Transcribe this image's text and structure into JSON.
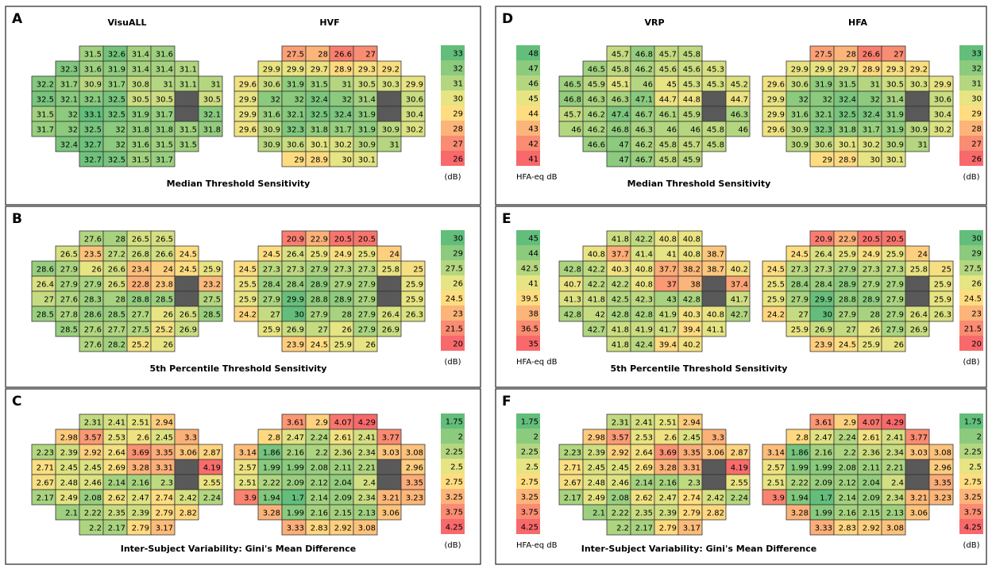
{
  "palette": [
    "#63be7b",
    "#8cca7e",
    "#b5d680",
    "#e6e483",
    "#fedd81",
    "#fbb479",
    "#f98c72",
    "#f8696b"
  ],
  "blind_spot_color": "#595959",
  "panels": [
    {
      "label": "A",
      "title": "Median Threshold Sensitivity",
      "grids": [
        {
          "name": "VisuALL",
          "rows": [
            [
              31.5,
              32.6,
              31.4,
              31.6
            ],
            [
              32.3,
              31.6,
              31.9,
              31.4,
              31.4,
              31.1
            ],
            [
              32.2,
              31.7,
              30.9,
              31.7,
              30.8,
              31,
              31.1,
              31
            ],
            [
              32.5,
              32.1,
              32.1,
              32.5,
              30.5,
              30.5,
              null,
              30.5
            ],
            [
              31.5,
              32,
              33.1,
              32.5,
              31.9,
              31.7,
              null,
              32.1
            ],
            [
              31.7,
              32,
              32.5,
              32,
              31.8,
              31.8,
              31.5,
              31.8
            ],
            [
              32.4,
              32.7,
              32,
              31.6,
              31.5,
              31.5
            ],
            [
              32.7,
              32.5,
              31.5,
              31.7
            ]
          ]
        },
        {
          "name": "HVF",
          "rows": [
            [
              27.5,
              28,
              26.6,
              27
            ],
            [
              29.9,
              29.9,
              29.7,
              28.9,
              29.3,
              29.2
            ],
            [
              29.6,
              30.6,
              31.9,
              31.5,
              31,
              30.5,
              30.3,
              29.9
            ],
            [
              29.9,
              32,
              32,
              32.4,
              32,
              31.4,
              null,
              30.6
            ],
            [
              29.9,
              31.6,
              32.1,
              32.5,
              32.4,
              31.9,
              null,
              30.4
            ],
            [
              29.6,
              30.9,
              32.3,
              31.8,
              31.7,
              31.9,
              30.9,
              30.2
            ],
            [
              30.9,
              30.6,
              30.1,
              30.2,
              30.9,
              31
            ],
            [
              29,
              28.9,
              30,
              30.1
            ]
          ]
        }
      ],
      "legends": [
        {
          "values": [
            33,
            32,
            31,
            30,
            29,
            28,
            27,
            26
          ],
          "unit": "(dB)"
        }
      ]
    },
    {
      "label": "B",
      "title": "5th Percentile Threshold Sensitivity",
      "grids": [
        {
          "rows": [
            [
              27.6,
              28,
              26.5,
              26.5
            ],
            [
              26.5,
              23.5,
              27.2,
              26.8,
              26.6,
              24.5
            ],
            [
              28.6,
              27.9,
              26,
              26.6,
              23.4,
              24,
              24.5,
              25.9
            ],
            [
              26.4,
              27.9,
              27.9,
              26.5,
              22.8,
              23.8,
              null,
              23.2
            ],
            [
              27,
              27.6,
              28.3,
              28,
              28.8,
              28.5,
              null,
              27.5
            ],
            [
              28.5,
              27.8,
              28.6,
              28.5,
              27.7,
              26,
              26.5,
              28.5
            ],
            [
              28.5,
              27.6,
              27.7,
              27.5,
              25.2,
              26.9
            ],
            [
              27.6,
              28.2,
              25.2,
              26
            ]
          ]
        },
        {
          "rows": [
            [
              20.9,
              22.9,
              20.5,
              20.5
            ],
            [
              24.5,
              26.4,
              25.9,
              24.9,
              25.9,
              24
            ],
            [
              24.5,
              27.3,
              27.3,
              27.9,
              27.3,
              27.3,
              25.8,
              25
            ],
            [
              25.5,
              28.4,
              28.4,
              28.9,
              27.9,
              27.9,
              null,
              25.9
            ],
            [
              25.9,
              27.9,
              29.9,
              28.8,
              28.9,
              27.9,
              null,
              25.9
            ],
            [
              24.2,
              27,
              30,
              27.9,
              28,
              27.9,
              26.4,
              26.3
            ],
            [
              25.9,
              26.9,
              27,
              26,
              27.9,
              26.9
            ],
            [
              23.9,
              24.5,
              25.9,
              26
            ]
          ]
        }
      ],
      "legends": [
        {
          "values": [
            30,
            29,
            27.5,
            26,
            24.5,
            23,
            21.5,
            20
          ],
          "unit": "(dB)"
        }
      ]
    },
    {
      "label": "C",
      "title": "Inter-Subject Variability: Gini's Mean Difference",
      "grids": [
        {
          "rows": [
            [
              2.31,
              2.41,
              2.51,
              2.94
            ],
            [
              2.98,
              3.57,
              2.53,
              2.6,
              2.45,
              3.3
            ],
            [
              2.23,
              2.39,
              2.92,
              2.64,
              3.69,
              3.35,
              3.06,
              2.87
            ],
            [
              2.71,
              2.45,
              2.45,
              2.69,
              3.28,
              3.31,
              null,
              4.19
            ],
            [
              2.67,
              2.48,
              2.46,
              2.14,
              2.16,
              2.3,
              null,
              2.55
            ],
            [
              2.17,
              2.49,
              2.08,
              2.62,
              2.47,
              2.74,
              2.42,
              2.24
            ],
            [
              2.1,
              2.22,
              2.35,
              2.39,
              2.79,
              2.82
            ],
            [
              2.2,
              2.17,
              2.79,
              3.17
            ]
          ]
        },
        {
          "rows": [
            [
              3.61,
              2.9,
              4.07,
              4.29
            ],
            [
              2.8,
              2.47,
              2.24,
              2.61,
              2.41,
              3.77
            ],
            [
              3.14,
              1.86,
              2.16,
              2.2,
              2.36,
              2.34,
              3.03,
              3.08
            ],
            [
              2.57,
              1.99,
              1.99,
              2.08,
              2.11,
              2.21,
              null,
              2.96
            ],
            [
              2.51,
              2.22,
              2.09,
              2.12,
              2.04,
              2.4,
              null,
              3.35
            ],
            [
              3.9,
              1.94,
              1.7,
              2.14,
              2.09,
              2.34,
              3.21,
              3.23
            ],
            [
              3.28,
              1.99,
              2.16,
              2.15,
              2.13,
              3.06
            ],
            [
              3.33,
              2.83,
              2.92,
              3.08
            ]
          ]
        }
      ],
      "legends": [
        {
          "values": [
            1.75,
            2,
            2.25,
            2.5,
            2.75,
            3.25,
            3.75,
            4.25
          ],
          "unit": "(dB)"
        }
      ]
    },
    {
      "label": "D",
      "title": "Median Threshold Sensitivity",
      "grids": [
        {
          "name": "VRP",
          "rows": [
            [
              45.7,
              46.8,
              45.7,
              45.8
            ],
            [
              46.5,
              45.8,
              46.2,
              45.6,
              45.6,
              45.3
            ],
            [
              46.5,
              45.9,
              45.1,
              46,
              45,
              45.3,
              45.3,
              45.2
            ],
            [
              46.8,
              46.3,
              46.3,
              47.1,
              44.7,
              44.8,
              null,
              44.7
            ],
            [
              45.7,
              46.2,
              47.4,
              46.7,
              46.1,
              45.9,
              null,
              46.3
            ],
            [
              46,
              46.2,
              46.8,
              46.3,
              46,
              46,
              45.8,
              46
            ],
            [
              46.6,
              47,
              46.2,
              45.8,
              45.7,
              45.8
            ],
            [
              47,
              46.7,
              45.8,
              45.9
            ]
          ]
        },
        {
          "name": "HFA",
          "rows": [
            [
              27.5,
              28,
              26.6,
              27
            ],
            [
              29.9,
              29.9,
              29.7,
              28.9,
              29.3,
              29.2
            ],
            [
              29.6,
              30.6,
              31.9,
              31.5,
              31,
              30.5,
              30.3,
              29.9
            ],
            [
              29.9,
              32,
              32,
              32.4,
              32,
              31.4,
              null,
              30.6
            ],
            [
              29.9,
              31.6,
              32.1,
              32.5,
              32.4,
              31.9,
              null,
              30.4
            ],
            [
              29.6,
              30.9,
              32.3,
              31.8,
              31.7,
              31.9,
              30.9,
              30.2
            ],
            [
              30.9,
              30.6,
              30.1,
              30.2,
              30.9,
              31
            ],
            [
              29,
              28.9,
              30,
              30.1
            ]
          ]
        }
      ],
      "legends": [
        {
          "values": [
            48,
            47,
            46,
            45,
            44,
            43,
            42,
            41
          ],
          "unit": "HFA-eq dB"
        },
        {
          "values": [
            33,
            32,
            31,
            30,
            29,
            28,
            27,
            26
          ],
          "unit": "(dB)"
        }
      ]
    },
    {
      "label": "E",
      "title": "5th Percentile Threshold Sensitivity",
      "grids": [
        {
          "rows": [
            [
              41.8,
              42.2,
              40.8,
              40.8
            ],
            [
              40.8,
              37.7,
              41.4,
              41,
              40.8,
              38.7
            ],
            [
              42.8,
              42.2,
              40.3,
              40.8,
              37.7,
              38.2,
              38.7,
              40.2
            ],
            [
              40.7,
              42.2,
              42.2,
              40.8,
              37,
              38,
              null,
              37.4
            ],
            [
              41.3,
              41.8,
              42.5,
              42.3,
              43,
              42.8,
              null,
              41.7
            ],
            [
              42.8,
              42,
              42.8,
              42.8,
              41.9,
              40.3,
              40.8,
              42.7
            ],
            [
              42.7,
              41.8,
              41.9,
              41.7,
              39.4,
              41.1
            ],
            [
              41.8,
              42.4,
              39.4,
              40.2
            ]
          ]
        },
        {
          "rows": [
            [
              20.9,
              22.9,
              20.5,
              20.5
            ],
            [
              24.5,
              26.4,
              25.9,
              24.9,
              25.9,
              24
            ],
            [
              24.5,
              27.3,
              27.3,
              27.9,
              27.3,
              27.3,
              25.8,
              25
            ],
            [
              25.5,
              28.4,
              28.4,
              28.9,
              27.9,
              27.9,
              null,
              25.9
            ],
            [
              25.9,
              27.9,
              29.9,
              28.8,
              28.9,
              27.9,
              null,
              25.9
            ],
            [
              24.2,
              27,
              30,
              27.9,
              28,
              27.9,
              26.4,
              26.3
            ],
            [
              25.9,
              26.9,
              27,
              26,
              27.9,
              26.9
            ],
            [
              23.9,
              24.5,
              25.9,
              26
            ]
          ]
        }
      ],
      "legends": [
        {
          "values": [
            45,
            44,
            42.5,
            41,
            39.5,
            38,
            36.5,
            35
          ],
          "unit": "HFA-eq dB"
        },
        {
          "values": [
            30,
            29,
            27.5,
            26,
            24.5,
            23,
            21.5,
            20
          ],
          "unit": "(dB)"
        }
      ]
    },
    {
      "label": "F",
      "title": "Inter-Subject Variability: Gini's Mean Difference",
      "grids": [
        {
          "rows": [
            [
              2.31,
              2.41,
              2.51,
              2.94
            ],
            [
              2.98,
              3.57,
              2.53,
              2.6,
              2.45,
              3.3
            ],
            [
              2.23,
              2.39,
              2.92,
              2.64,
              3.69,
              3.35,
              3.06,
              2.87
            ],
            [
              2.71,
              2.45,
              2.45,
              2.69,
              3.28,
              3.31,
              null,
              4.19
            ],
            [
              2.67,
              2.48,
              2.46,
              2.14,
              2.16,
              2.3,
              null,
              2.55
            ],
            [
              2.17,
              2.49,
              2.08,
              2.62,
              2.47,
              2.74,
              2.42,
              2.24
            ],
            [
              2.1,
              2.22,
              2.35,
              2.39,
              2.79,
              2.82
            ],
            [
              2.2,
              2.17,
              2.79,
              3.17
            ]
          ]
        },
        {
          "rows": [
            [
              3.61,
              2.9,
              4.07,
              4.29
            ],
            [
              2.8,
              2.47,
              2.24,
              2.61,
              2.41,
              3.77
            ],
            [
              3.14,
              1.86,
              2.16,
              2.2,
              2.36,
              2.34,
              3.03,
              3.08
            ],
            [
              2.57,
              1.99,
              1.99,
              2.08,
              2.11,
              2.21,
              null,
              2.96
            ],
            [
              2.51,
              2.22,
              2.09,
              2.12,
              2.04,
              2.4,
              null,
              3.35
            ],
            [
              3.9,
              1.94,
              1.7,
              2.14,
              2.09,
              2.34,
              3.21,
              3.23
            ],
            [
              3.28,
              1.99,
              2.16,
              2.15,
              2.13,
              3.06
            ],
            [
              3.33,
              2.83,
              2.92,
              3.08
            ]
          ]
        }
      ],
      "legends": [
        {
          "values": [
            1.75,
            2,
            2.25,
            2.5,
            2.75,
            3.25,
            3.75,
            4.25
          ],
          "unit": "HFA-eq dB"
        },
        {
          "values": [
            1.75,
            2,
            2.25,
            2.5,
            2.75,
            3.25,
            3.75,
            4.25
          ],
          "unit": "(dB)"
        }
      ]
    }
  ]
}
